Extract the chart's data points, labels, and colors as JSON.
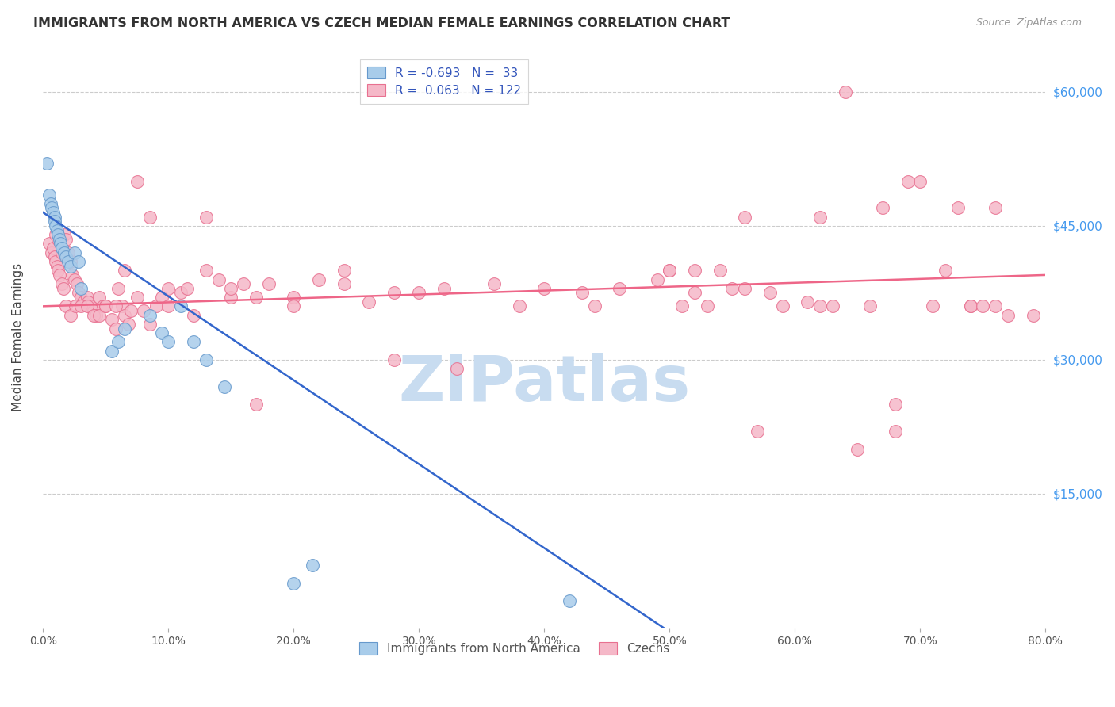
{
  "title": "IMMIGRANTS FROM NORTH AMERICA VS CZECH MEDIAN FEMALE EARNINGS CORRELATION CHART",
  "source": "Source: ZipAtlas.com",
  "ylabel": "Median Female Earnings",
  "ytick_labels": [
    "$60,000",
    "$45,000",
    "$30,000",
    "$15,000"
  ],
  "ytick_values": [
    60000,
    45000,
    30000,
    15000
  ],
  "ymin": 0,
  "ymax": 65000,
  "xmin": 0.0,
  "xmax": 0.8,
  "legend_r1": "R = -0.693",
  "legend_n1": "N =  33",
  "legend_r2": "R =  0.063",
  "legend_n2": "N = 122",
  "label_blue": "Immigrants from North America",
  "label_pink": "Czechs",
  "color_blue": "#A8CCEA",
  "color_pink": "#F5B8C8",
  "edge_blue": "#6699CC",
  "edge_pink": "#E87090",
  "line_blue": "#3366CC",
  "line_pink": "#EE6688",
  "watermark": "ZIPatlas",
  "watermark_color": "#C8DCF0",
  "blue_line_x": [
    0.0,
    0.495
  ],
  "blue_line_y": [
    46500,
    0
  ],
  "pink_line_x": [
    0.0,
    0.8
  ],
  "pink_line_y": [
    36000,
    39500
  ],
  "blue_scatter_x": [
    0.003,
    0.005,
    0.006,
    0.007,
    0.008,
    0.009,
    0.009,
    0.01,
    0.011,
    0.012,
    0.013,
    0.014,
    0.015,
    0.017,
    0.018,
    0.02,
    0.022,
    0.025,
    0.028,
    0.03,
    0.055,
    0.06,
    0.065,
    0.085,
    0.095,
    0.1,
    0.11,
    0.12,
    0.13,
    0.145,
    0.2,
    0.215,
    0.42
  ],
  "blue_scatter_y": [
    52000,
    48500,
    47500,
    47000,
    46500,
    46000,
    45500,
    45000,
    44500,
    44000,
    43500,
    43000,
    42500,
    42000,
    41500,
    41000,
    40500,
    42000,
    41000,
    38000,
    31000,
    32000,
    33500,
    35000,
    33000,
    32000,
    36000,
    32000,
    30000,
    27000,
    5000,
    7000,
    3000
  ],
  "pink_scatter_x": [
    0.005,
    0.007,
    0.008,
    0.009,
    0.01,
    0.011,
    0.012,
    0.013,
    0.015,
    0.016,
    0.017,
    0.018,
    0.02,
    0.022,
    0.023,
    0.025,
    0.027,
    0.028,
    0.03,
    0.032,
    0.035,
    0.036,
    0.038,
    0.04,
    0.042,
    0.045,
    0.048,
    0.05,
    0.055,
    0.058,
    0.06,
    0.063,
    0.065,
    0.068,
    0.07,
    0.075,
    0.08,
    0.085,
    0.09,
    0.095,
    0.1,
    0.11,
    0.12,
    0.13,
    0.14,
    0.15,
    0.16,
    0.17,
    0.18,
    0.2,
    0.22,
    0.24,
    0.26,
    0.28,
    0.3,
    0.32,
    0.36,
    0.4,
    0.43,
    0.46,
    0.49,
    0.52,
    0.55,
    0.58,
    0.61,
    0.64,
    0.67,
    0.7,
    0.73,
    0.76,
    0.01,
    0.012,
    0.015,
    0.018,
    0.022,
    0.026,
    0.03,
    0.035,
    0.04,
    0.045,
    0.05,
    0.058,
    0.065,
    0.075,
    0.085,
    0.1,
    0.115,
    0.13,
    0.15,
    0.17,
    0.2,
    0.24,
    0.28,
    0.33,
    0.38,
    0.44,
    0.5,
    0.56,
    0.62,
    0.68,
    0.74,
    0.5,
    0.51,
    0.52,
    0.53,
    0.54,
    0.56,
    0.57,
    0.59,
    0.62,
    0.65,
    0.68,
    0.71,
    0.74,
    0.77,
    0.79,
    0.76,
    0.75,
    0.72,
    0.69,
    0.66,
    0.63
  ],
  "pink_scatter_y": [
    43000,
    42000,
    42500,
    41500,
    41000,
    40500,
    40000,
    39500,
    38500,
    38000,
    44000,
    43500,
    42000,
    41000,
    39500,
    39000,
    38500,
    37500,
    37000,
    36500,
    37000,
    36500,
    36000,
    35500,
    35000,
    37000,
    36000,
    36000,
    34500,
    33500,
    38000,
    36000,
    35000,
    34000,
    35500,
    37000,
    35500,
    34000,
    36000,
    37000,
    38000,
    37500,
    35000,
    40000,
    39000,
    37000,
    38500,
    37000,
    38500,
    37000,
    39000,
    38500,
    36500,
    37500,
    37500,
    38000,
    38500,
    38000,
    37500,
    38000,
    39000,
    37500,
    38000,
    37500,
    36500,
    60000,
    47000,
    50000,
    47000,
    47000,
    44000,
    43500,
    42000,
    36000,
    35000,
    36000,
    36000,
    36000,
    35000,
    35000,
    36000,
    36000,
    40000,
    50000,
    46000,
    36000,
    38000,
    46000,
    38000,
    25000,
    36000,
    40000,
    30000,
    29000,
    36000,
    36000,
    40000,
    46000,
    46000,
    22000,
    36000,
    40000,
    36000,
    40000,
    36000,
    40000,
    38000,
    22000,
    36000,
    36000,
    20000,
    25000,
    36000,
    36000,
    35000,
    35000,
    36000,
    36000,
    40000,
    50000,
    36000,
    36000
  ]
}
